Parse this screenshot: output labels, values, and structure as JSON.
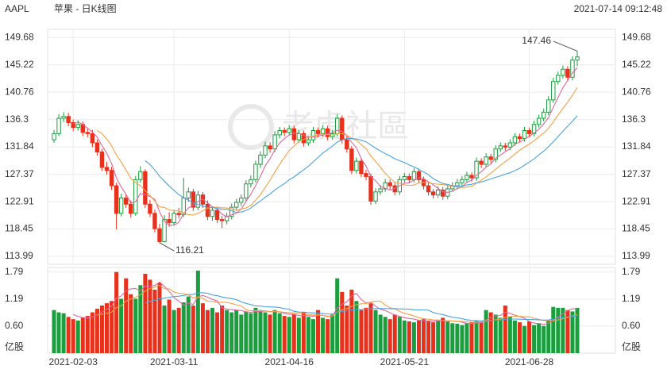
{
  "chart_data": {
    "type": "candlestick",
    "symbol": "AAPL",
    "title": "苹果 - 日K线图",
    "timestamp": "2021-07-14 09:12:48",
    "watermark": "老虎社區",
    "up_color": "#1b9e3e",
    "down_color": "#e8311c",
    "ylim": [
      112.7,
      151
    ],
    "yticks": [
      149.68,
      145.22,
      140.76,
      136.3,
      131.84,
      127.37,
      122.91,
      118.45,
      113.99
    ],
    "y2lim": [
      0,
      1.89
    ],
    "y2ticks": [
      1.79,
      1.19,
      {
        "value": 0.6,
        "label": "0.60"
      }
    ],
    "volume_unit": "亿股",
    "grid": true,
    "ma": [
      {
        "period": 5,
        "color": "#e0679b"
      },
      {
        "period": 10,
        "color": "#f5a142"
      },
      {
        "period": 20,
        "color": "#4aa3df"
      }
    ],
    "categories": [
      null,
      null,
      null,
      null,
      "2021-02-03",
      null,
      null,
      null,
      null,
      null,
      null,
      null,
      null,
      null,
      null,
      null,
      null,
      null,
      null,
      null,
      null,
      null,
      null,
      null,
      null,
      "2021-03-11",
      null,
      null,
      null,
      null,
      null,
      null,
      null,
      null,
      null,
      null,
      null,
      null,
      null,
      null,
      null,
      null,
      null,
      null,
      null,
      null,
      null,
      null,
      null,
      "2021-04-16",
      null,
      null,
      null,
      null,
      null,
      null,
      null,
      null,
      null,
      null,
      null,
      null,
      null,
      null,
      null,
      null,
      null,
      null,
      null,
      null,
      null,
      null,
      null,
      "2021-05-21",
      null,
      null,
      null,
      null,
      null,
      null,
      null,
      null,
      null,
      null,
      null,
      null,
      null,
      null,
      null,
      null,
      null,
      null,
      null,
      null,
      null,
      null,
      null,
      null,
      null,
      "2021-06-28",
      null,
      null,
      null,
      null,
      null,
      null,
      null,
      null,
      null,
      null
    ],
    "ohlc": [
      [
        133.0,
        134.6,
        132.5,
        134.0
      ],
      [
        134.0,
        137.2,
        133.6,
        136.5
      ],
      [
        136.5,
        137.5,
        135.9,
        136.8
      ],
      [
        136.8,
        137.4,
        135.2,
        135.8
      ],
      [
        135.8,
        136.3,
        134.4,
        135.0
      ],
      [
        135.0,
        136.2,
        134.5,
        135.5
      ],
      [
        135.5,
        136.0,
        133.6,
        134.2
      ],
      [
        134.2,
        134.9,
        133.4,
        134.0
      ],
      [
        134.0,
        134.6,
        131.8,
        132.5
      ],
      [
        132.5,
        133.1,
        130.4,
        131.0
      ],
      [
        131.0,
        131.5,
        127.9,
        128.5
      ],
      [
        128.5,
        129.4,
        127.3,
        128.0
      ],
      [
        128.0,
        128.6,
        124.8,
        125.5
      ],
      [
        125.5,
        126.0,
        118.4,
        121.0
      ],
      [
        121.0,
        124.2,
        120.5,
        123.5
      ],
      [
        123.5,
        124.0,
        121.9,
        122.5
      ],
      [
        122.5,
        123.1,
        120.3,
        121.0
      ],
      [
        121.0,
        127.1,
        120.6,
        126.5
      ],
      [
        126.5,
        128.7,
        126.0,
        127.8
      ],
      [
        127.8,
        128.2,
        121.9,
        122.5
      ],
      [
        122.5,
        123.2,
        120.4,
        121.0
      ],
      [
        121.0,
        121.6,
        117.9,
        118.5
      ],
      [
        118.5,
        119.3,
        116.21,
        116.4
      ],
      [
        116.4,
        120.7,
        116.3,
        120.0
      ],
      [
        120.0,
        121.2,
        118.8,
        119.5
      ],
      [
        119.5,
        121.6,
        119.0,
        121.0
      ],
      [
        121.0,
        121.9,
        120.2,
        120.8
      ],
      [
        120.8,
        126.8,
        120.4,
        123.5
      ],
      [
        123.5,
        125.2,
        122.9,
        124.5
      ],
      [
        124.5,
        125.0,
        121.4,
        122.0
      ],
      [
        122.0,
        124.7,
        121.5,
        124.0
      ],
      [
        124.0,
        124.5,
        121.9,
        122.5
      ],
      [
        122.5,
        123.1,
        119.9,
        120.5
      ],
      [
        120.5,
        122.1,
        119.8,
        121.5
      ],
      [
        121.5,
        122.0,
        119.4,
        120.0
      ],
      [
        120.0,
        120.6,
        118.6,
        119.8
      ],
      [
        119.8,
        121.1,
        119.2,
        120.5
      ],
      [
        120.5,
        122.6,
        120.0,
        122.0
      ],
      [
        122.0,
        123.4,
        121.4,
        122.8
      ],
      [
        122.8,
        124.1,
        122.2,
        123.5
      ],
      [
        123.5,
        126.4,
        123.0,
        125.8
      ],
      [
        125.8,
        127.2,
        125.2,
        126.5
      ],
      [
        126.5,
        129.6,
        126.0,
        129.0
      ],
      [
        129.0,
        131.1,
        128.4,
        130.5
      ],
      [
        130.5,
        132.7,
        130.0,
        132.0
      ],
      [
        132.0,
        132.6,
        130.9,
        131.5
      ],
      [
        131.5,
        134.4,
        131.0,
        133.8
      ],
      [
        133.8,
        135.1,
        133.2,
        134.5
      ],
      [
        134.5,
        135.0,
        133.6,
        134.2
      ],
      [
        134.2,
        135.4,
        133.7,
        134.8
      ],
      [
        134.8,
        135.3,
        132.4,
        133.0
      ],
      [
        133.0,
        134.6,
        132.5,
        134.0
      ],
      [
        134.0,
        134.5,
        131.9,
        132.5
      ],
      [
        132.5,
        133.6,
        132.0,
        133.0
      ],
      [
        133.0,
        135.1,
        132.5,
        134.5
      ],
      [
        134.5,
        135.0,
        133.4,
        134.0
      ],
      [
        134.0,
        135.4,
        133.5,
        134.8
      ],
      [
        134.8,
        135.3,
        132.9,
        133.5
      ],
      [
        133.5,
        134.6,
        133.0,
        134.0
      ],
      [
        134.0,
        137.2,
        133.5,
        136.5
      ],
      [
        136.5,
        137.0,
        132.4,
        133.0
      ],
      [
        133.0,
        133.6,
        130.9,
        131.5
      ],
      [
        131.5,
        132.0,
        127.4,
        128.0
      ],
      [
        128.0,
        130.1,
        127.5,
        129.5
      ],
      [
        129.5,
        130.0,
        126.9,
        127.5
      ],
      [
        127.5,
        128.1,
        126.4,
        127.0
      ],
      [
        127.0,
        127.5,
        122.4,
        123.0
      ],
      [
        123.0,
        125.1,
        122.5,
        124.5
      ],
      [
        124.5,
        125.6,
        124.0,
        125.0
      ],
      [
        125.0,
        126.6,
        124.5,
        126.0
      ],
      [
        126.0,
        126.5,
        124.9,
        125.5
      ],
      [
        125.5,
        126.0,
        123.9,
        124.5
      ],
      [
        124.5,
        127.1,
        124.0,
        126.5
      ],
      [
        126.5,
        127.6,
        126.0,
        127.0
      ],
      [
        127.0,
        127.5,
        125.9,
        126.5
      ],
      [
        126.5,
        128.4,
        126.0,
        127.8
      ],
      [
        127.8,
        128.3,
        125.9,
        126.5
      ],
      [
        126.5,
        127.0,
        124.9,
        125.5
      ],
      [
        125.5,
        126.0,
        123.9,
        124.5
      ],
      [
        124.5,
        125.0,
        123.4,
        124.0
      ],
      [
        124.0,
        125.4,
        123.5,
        124.8
      ],
      [
        124.8,
        125.3,
        123.2,
        123.8
      ],
      [
        123.8,
        125.6,
        123.3,
        125.0
      ],
      [
        125.0,
        126.1,
        124.5,
        125.5
      ],
      [
        125.5,
        126.6,
        125.0,
        126.0
      ],
      [
        126.0,
        127.1,
        125.5,
        126.5
      ],
      [
        126.5,
        127.8,
        126.0,
        127.2
      ],
      [
        127.2,
        127.7,
        126.2,
        126.8
      ],
      [
        126.8,
        130.1,
        126.3,
        129.5
      ],
      [
        129.5,
        130.0,
        128.4,
        129.0
      ],
      [
        129.0,
        130.8,
        128.5,
        130.2
      ],
      [
        130.2,
        130.7,
        129.2,
        129.8
      ],
      [
        129.8,
        132.1,
        129.3,
        131.5
      ],
      [
        131.5,
        132.6,
        131.0,
        132.0
      ],
      [
        132.0,
        132.5,
        131.2,
        131.8
      ],
      [
        131.8,
        133.1,
        131.3,
        132.5
      ],
      [
        132.5,
        134.1,
        132.0,
        133.5
      ],
      [
        133.5,
        134.0,
        132.6,
        133.2
      ],
      [
        133.2,
        135.1,
        132.7,
        134.5
      ],
      [
        134.5,
        135.0,
        133.4,
        134.0
      ],
      [
        134.0,
        136.1,
        133.5,
        135.5
      ],
      [
        135.5,
        137.1,
        135.0,
        136.5
      ],
      [
        136.5,
        138.1,
        136.0,
        137.5
      ],
      [
        137.5,
        140.1,
        137.0,
        139.5
      ],
      [
        139.5,
        143.1,
        139.0,
        142.5
      ],
      [
        142.5,
        144.1,
        142.0,
        143.5
      ],
      [
        143.5,
        145.1,
        143.0,
        144.5
      ],
      [
        144.5,
        145.0,
        142.6,
        143.2
      ],
      [
        143.2,
        146.6,
        142.7,
        146.0
      ],
      [
        146.0,
        147.46,
        145.0,
        146.5
      ]
    ],
    "volume": [
      0.95,
      0.9,
      0.88,
      0.8,
      0.75,
      0.72,
      0.78,
      0.82,
      0.9,
      0.98,
      1.05,
      1.1,
      1.15,
      1.79,
      1.2,
      1.65,
      1.3,
      1.2,
      1.5,
      1.75,
      1.62,
      1.4,
      1.55,
      1.05,
      1.18,
      0.95,
      1.0,
      1.12,
      1.25,
      1.05,
      1.82,
      1.1,
      0.95,
      1.0,
      0.9,
      1.05,
      0.95,
      0.9,
      0.95,
      0.85,
      0.92,
      0.88,
      1.0,
      0.95,
      0.9,
      0.85,
      0.95,
      0.88,
      0.82,
      0.8,
      0.85,
      0.78,
      0.9,
      0.8,
      0.75,
      0.95,
      0.78,
      0.75,
      0.85,
      1.65,
      1.35,
      1.05,
      1.4,
      1.15,
      0.95,
      1.0,
      1.1,
      0.95,
      0.85,
      0.8,
      0.75,
      0.85,
      0.8,
      0.72,
      0.7,
      0.68,
      0.72,
      0.75,
      0.7,
      0.68,
      0.72,
      0.78,
      0.7,
      0.66,
      0.65,
      0.62,
      0.66,
      0.68,
      0.72,
      0.68,
      0.95,
      0.9,
      0.85,
      0.78,
      1.05,
      0.8,
      0.72,
      0.68,
      0.6,
      0.7,
      0.62,
      0.66,
      0.6,
      0.72,
      1.02,
      1.0,
      1.0,
      0.95,
      0.92,
      1.0
    ]
  }
}
